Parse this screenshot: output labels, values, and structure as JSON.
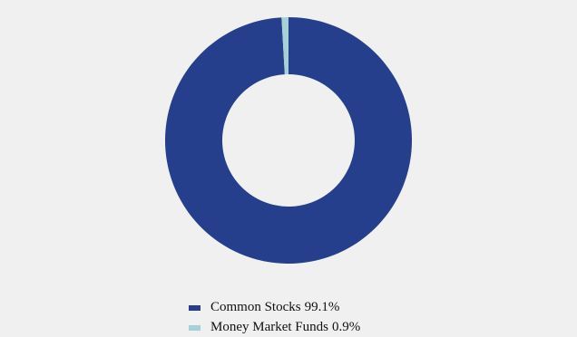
{
  "chart_data": {
    "type": "pie",
    "categories": [
      "Common Stocks",
      "Money Market Funds"
    ],
    "values": [
      99.1,
      0.9
    ],
    "value_labels": [
      "99.1%",
      "0.9%"
    ],
    "colors": [
      "#253f8c",
      "#a6d0d8"
    ]
  }
}
